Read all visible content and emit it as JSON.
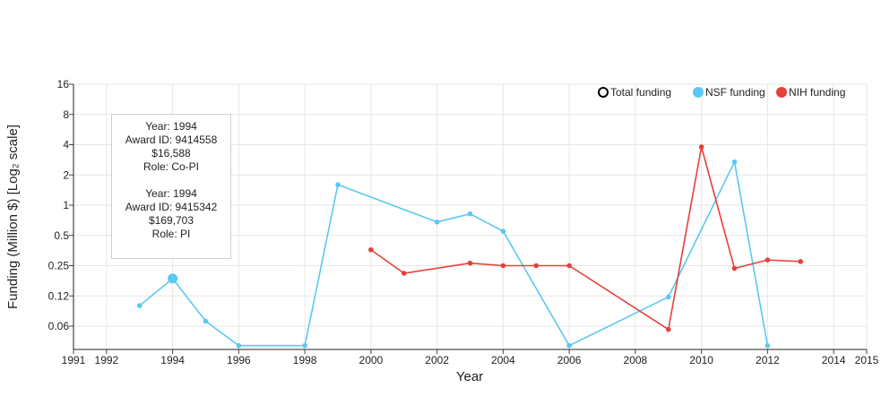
{
  "chart_data": {
    "type": "line",
    "xlabel": "Year",
    "ylabel": "Funding (Million $) [Log₂ scale]",
    "y_scale": "log2",
    "xlim": [
      1991,
      2015
    ],
    "x_ticks": [
      1991,
      1992,
      1994,
      1996,
      1998,
      2000,
      2002,
      2004,
      2006,
      2008,
      2010,
      2012,
      2014,
      2015
    ],
    "ylim": [
      0.03,
      16
    ],
    "y_ticks": [
      {
        "value": 16,
        "label": "16"
      },
      {
        "value": 8,
        "label": "8"
      },
      {
        "value": 4,
        "label": "4"
      },
      {
        "value": 2,
        "label": "2"
      },
      {
        "value": 1,
        "label": "1"
      },
      {
        "value": 0.5,
        "label": "0.5"
      },
      {
        "value": 0.25,
        "label": "0.25"
      },
      {
        "value": 0.125,
        "label": "0.12"
      },
      {
        "value": 0.0625,
        "label": "0.06"
      }
    ],
    "grid": true,
    "legend_position": "top-right",
    "legend": [
      {
        "name": "Total funding",
        "color": "#000000",
        "style": "hollow"
      },
      {
        "name": "NSF funding",
        "color": "#5bc8f0",
        "style": "filled"
      },
      {
        "name": "NIH funding",
        "color": "#e5413a",
        "style": "filled"
      }
    ],
    "series": [
      {
        "name": "NSF funding",
        "color": "#5bc8f0",
        "points": [
          {
            "x": 1993,
            "y": 0.1
          },
          {
            "x": 1994,
            "y": 0.186,
            "highlight": true
          },
          {
            "x": 1995,
            "y": 0.07
          },
          {
            "x": 1996,
            "y": 0.04
          },
          {
            "x": 1998,
            "y": 0.04
          },
          {
            "x": 1999,
            "y": 1.6
          },
          {
            "x": 2002,
            "y": 0.68
          },
          {
            "x": 2003,
            "y": 0.82
          },
          {
            "x": 2004,
            "y": 0.55
          },
          {
            "x": 2006,
            "y": 0.04
          },
          {
            "x": 2009,
            "y": 0.122
          },
          {
            "x": 2011,
            "y": 2.7
          },
          {
            "x": 2012,
            "y": 0.04
          }
        ]
      },
      {
        "name": "NIH funding",
        "color": "#e5413a",
        "points": [
          {
            "x": 2000,
            "y": 0.36
          },
          {
            "x": 2001,
            "y": 0.21
          },
          {
            "x": 2003,
            "y": 0.265
          },
          {
            "x": 2004,
            "y": 0.25
          },
          {
            "x": 2005,
            "y": 0.25
          },
          {
            "x": 2006,
            "y": 0.25
          },
          {
            "x": 2009,
            "y": 0.058
          },
          {
            "x": 2010,
            "y": 3.8
          },
          {
            "x": 2011,
            "y": 0.235
          },
          {
            "x": 2012,
            "y": 0.285
          },
          {
            "x": 2013,
            "y": 0.275
          }
        ]
      }
    ],
    "tooltip": [
      {
        "year": "Year: 1994",
        "award": "Award ID: 9414558",
        "amount": "$16,588",
        "role": "Role: Co-PI"
      },
      {
        "year": "Year: 1994",
        "award": "Award ID: 9415342",
        "amount": "$169,703",
        "role": "Role: PI"
      }
    ]
  }
}
